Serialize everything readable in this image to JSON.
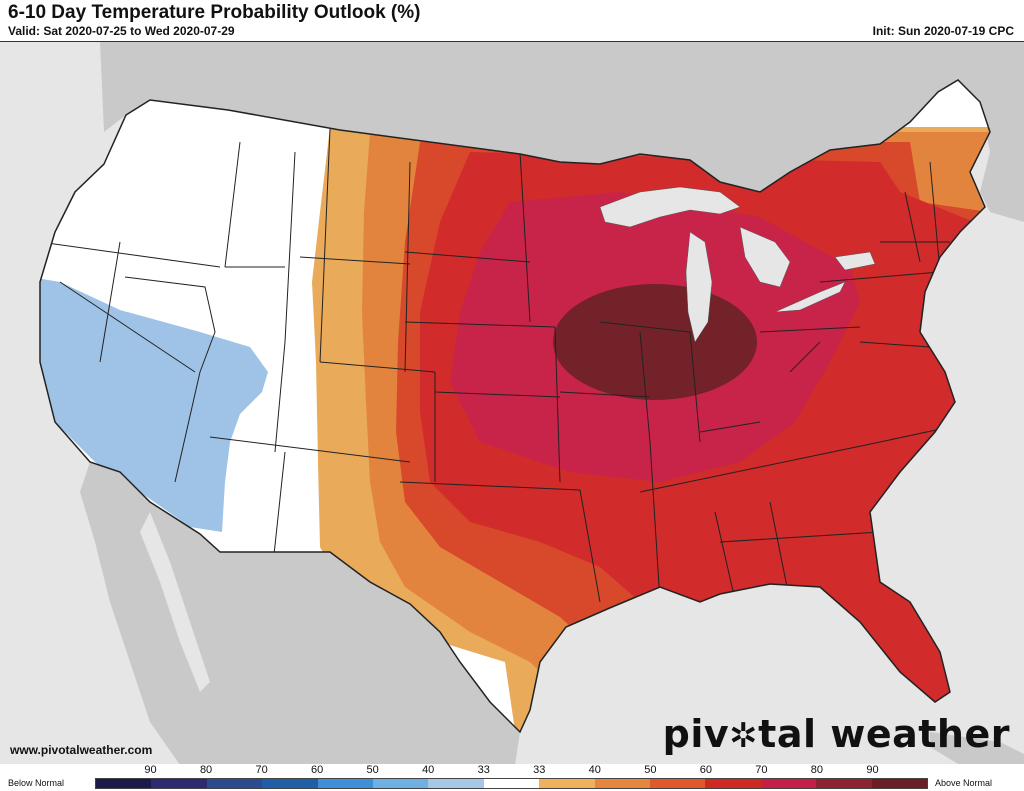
{
  "header": {
    "title": "6-10 Day Temperature Probability Outlook (%)",
    "valid": "Valid: Sat 2020-07-25 to Wed 2020-07-29",
    "init": "Init: Sun 2020-07-19 CPC"
  },
  "footer": {
    "site_url": "www.pivotalweather.com",
    "brand_part1": "piv",
    "brand_part2": "tal weather"
  },
  "legend": {
    "below_label": "Below Normal",
    "above_label": "Above Normal",
    "ticks": [
      "90",
      "80",
      "70",
      "60",
      "50",
      "40",
      "33",
      "33",
      "40",
      "50",
      "60",
      "70",
      "80",
      "90"
    ],
    "colors": [
      "#1b1a4a",
      "#2c2a70",
      "#2b4d8f",
      "#1f5fa8",
      "#3d8fd6",
      "#6fb0e3",
      "#a6c8e8",
      "#ffffff",
      "#efb15e",
      "#e6853f",
      "#de5a2c",
      "#cf2a22",
      "#c71e47",
      "#8c2330",
      "#6a1f27"
    ]
  },
  "map": {
    "colors": {
      "ocean": "#e6e6e6",
      "land": "#c9c9c9",
      "neutral": "#ffffff",
      "below_33": "#9fc3e6",
      "above_33": "#e9aa5a",
      "above_40": "#e3843e",
      "above_50": "#d8492c",
      "above_60": "#d12b2b",
      "above_70": "#c8244a",
      "above_80": "#6b2326",
      "border": "#222222"
    }
  }
}
